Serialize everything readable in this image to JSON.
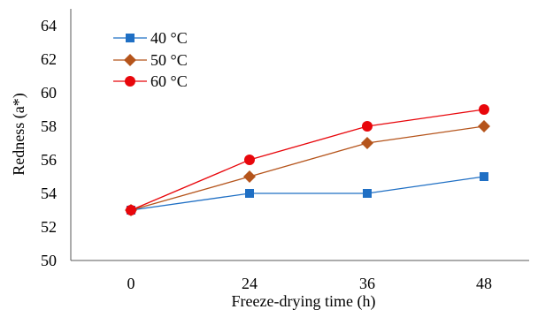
{
  "chart_data": {
    "type": "line",
    "title": "",
    "xlabel": "Freeze-drying time (h)",
    "ylabel": "Redness (a*)",
    "categories": [
      "0",
      "24",
      "36",
      "48"
    ],
    "ylim": [
      50,
      64
    ],
    "yticks": [
      50,
      52,
      54,
      56,
      58,
      60,
      62,
      64
    ],
    "grid": false,
    "legend_position": "top-left",
    "series": [
      {
        "name": "40 °C",
        "values": [
          53,
          54,
          54,
          55
        ],
        "color": "#1f6fc4",
        "marker": "square"
      },
      {
        "name": "50 °C",
        "values": [
          53,
          55,
          57,
          58
        ],
        "color": "#b5541b",
        "marker": "diamond"
      },
      {
        "name": "60 °C",
        "values": [
          53,
          56,
          58,
          59
        ],
        "color": "#e8060b",
        "marker": "circle"
      }
    ]
  }
}
